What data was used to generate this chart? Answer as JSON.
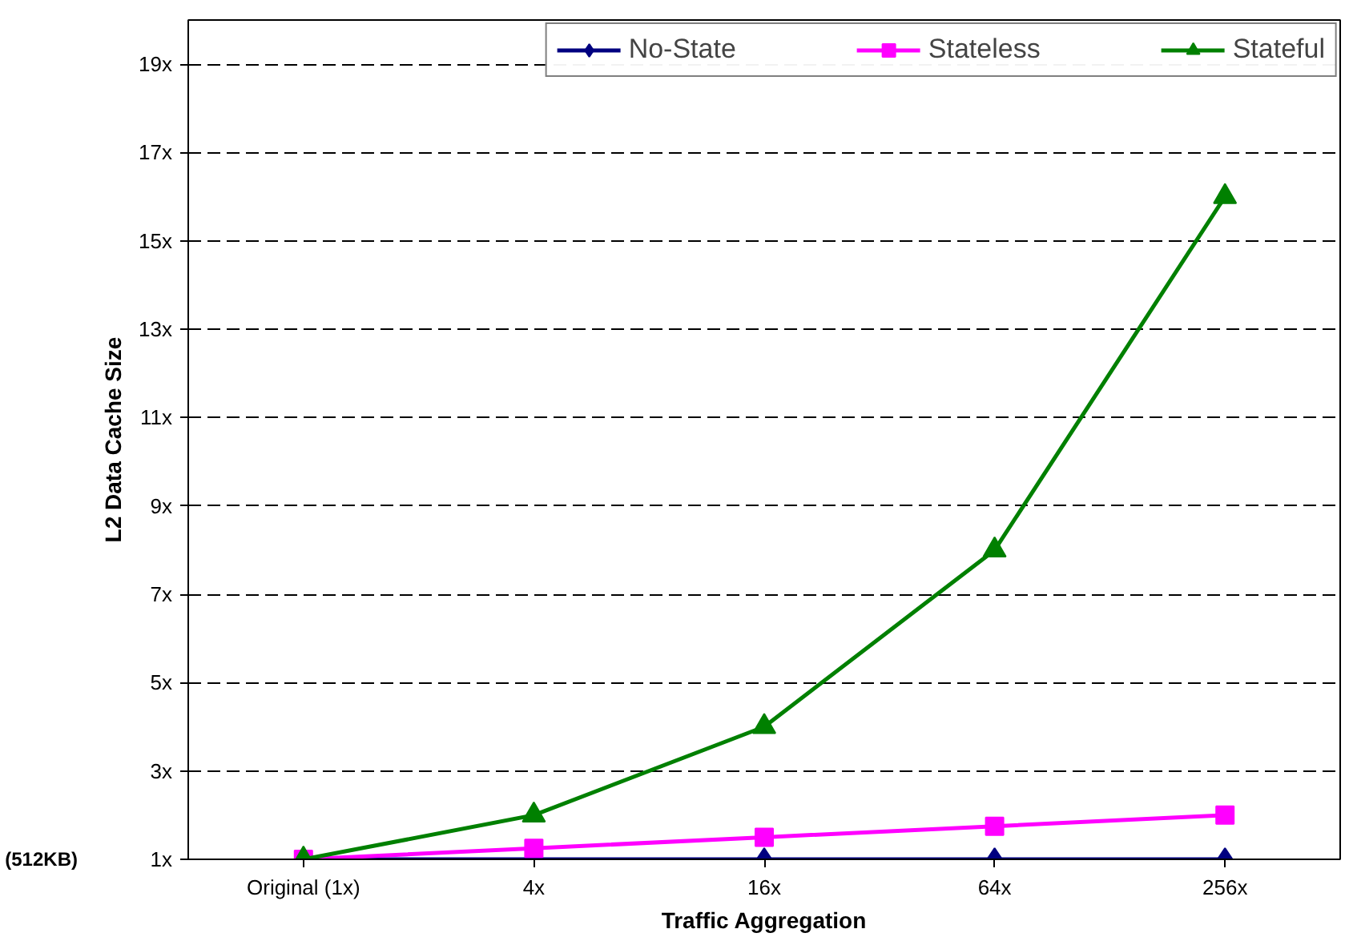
{
  "chart_data": {
    "type": "line",
    "xlabel": "Traffic Aggregation",
    "ylabel": "L2 Data Cache Size",
    "categories": [
      "Original (1x)",
      "4x",
      "16x",
      "64x",
      "256x"
    ],
    "series": [
      {
        "name": "No-State",
        "color": "#000080",
        "marker": "diamond",
        "values": [
          1,
          1,
          1,
          1,
          1
        ]
      },
      {
        "name": "Stateless",
        "color": "#ff00ff",
        "marker": "square",
        "values": [
          1,
          1.25,
          1.5,
          1.75,
          2
        ]
      },
      {
        "name": "Stateful",
        "color": "#008000",
        "marker": "triangle",
        "values": [
          1,
          2,
          4,
          8,
          16
        ]
      }
    ],
    "ylim": [
      1,
      20
    ],
    "yticks": [
      {
        "value": 1,
        "label": "1x"
      },
      {
        "value": 3,
        "label": "3x"
      },
      {
        "value": 5,
        "label": "5x"
      },
      {
        "value": 7,
        "label": "7x"
      },
      {
        "value": 9,
        "label": "9x"
      },
      {
        "value": 11,
        "label": "11x"
      },
      {
        "value": 13,
        "label": "13x"
      },
      {
        "value": 15,
        "label": "15x"
      },
      {
        "value": 17,
        "label": "17x"
      },
      {
        "value": 19,
        "label": "19x"
      }
    ],
    "annotations": [
      "(512KB)"
    ],
    "grid": "y",
    "legend": "top",
    "line_style": "solid"
  }
}
